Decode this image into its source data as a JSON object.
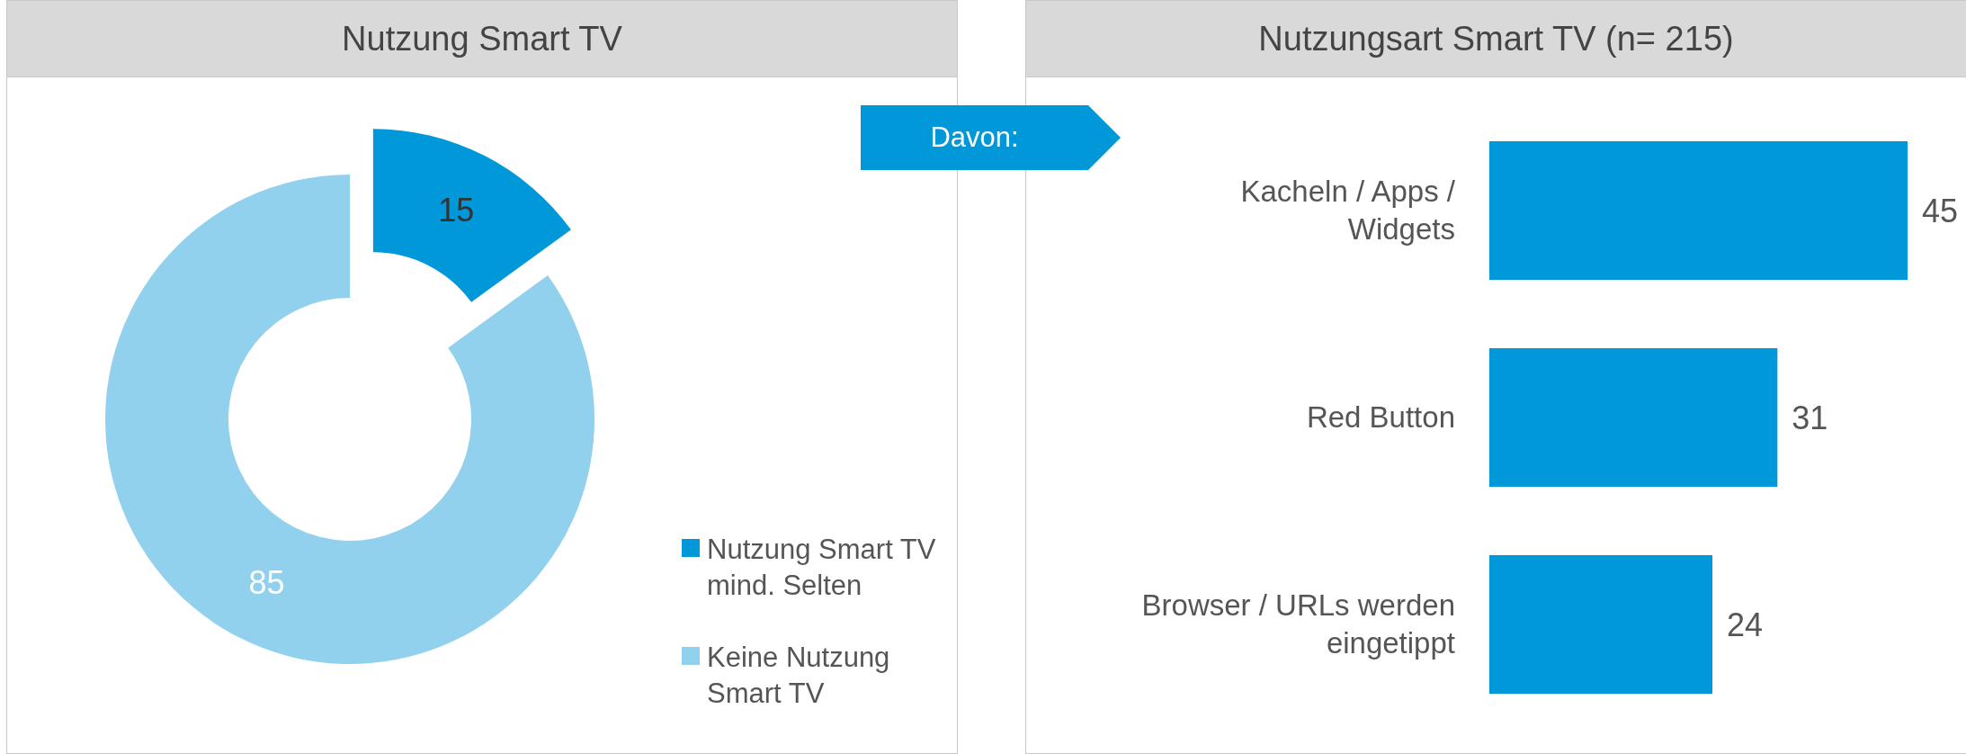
{
  "chart_data": [
    {
      "type": "donut",
      "title": "Nutzung Smart TV",
      "categories": [
        "Nutzung Smart TV mind. Selten",
        "Keine Nutzung Smart TV"
      ],
      "values": [
        15,
        85
      ],
      "colors": [
        "#0098d9",
        "#92d1ee"
      ],
      "data_labels": true,
      "legend": "bottom right"
    },
    {
      "type": "bar",
      "orientation": "horizontal",
      "title": "Nutzungsart Smart TV (n= 215)",
      "categories": [
        "Kacheln / Apps / Widgets",
        "Red Button",
        "Browser / URLs werden eingetippt"
      ],
      "values": [
        45,
        31,
        24
      ],
      "color": "#0098d9",
      "data_labels": true,
      "annotations": [
        "Davon:"
      ]
    }
  ]
}
